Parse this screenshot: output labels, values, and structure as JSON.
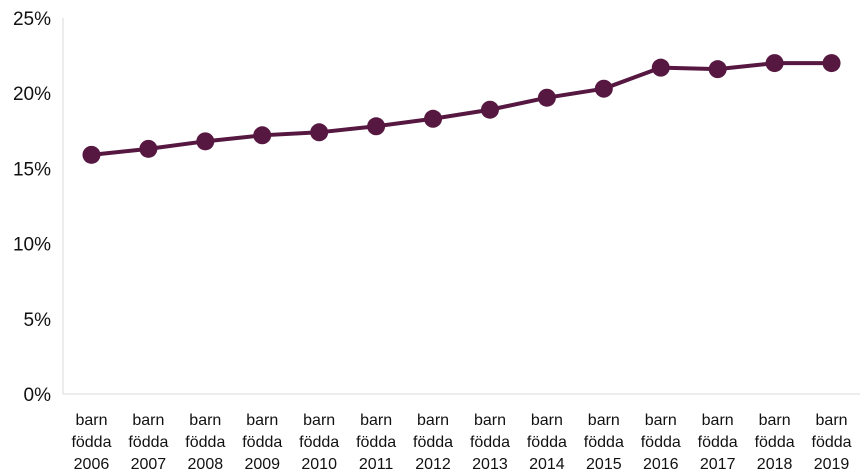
{
  "chart_data": {
    "type": "line",
    "title": "",
    "xlabel": "",
    "ylabel": "",
    "categories": [
      [
        "barn",
        "födda",
        "2006"
      ],
      [
        "barn",
        "födda",
        "2007"
      ],
      [
        "barn",
        "födda",
        "2008"
      ],
      [
        "barn",
        "födda",
        "2009"
      ],
      [
        "barn",
        "födda",
        "2010"
      ],
      [
        "barn",
        "födda",
        "2011"
      ],
      [
        "barn",
        "födda",
        "2012"
      ],
      [
        "barn",
        "födda",
        "2013"
      ],
      [
        "barn",
        "födda",
        "2014"
      ],
      [
        "barn",
        "födda",
        "2015"
      ],
      [
        "barn",
        "födda",
        "2016"
      ],
      [
        "barn",
        "födda",
        "2017"
      ],
      [
        "barn",
        "födda",
        "2018"
      ],
      [
        "barn",
        "födda",
        "2019"
      ]
    ],
    "series": [
      {
        "values": [
          15.9,
          16.3,
          16.8,
          17.2,
          17.4,
          17.8,
          18.3,
          18.9,
          19.7,
          20.3,
          21.7,
          21.6,
          22.0,
          22.0
        ]
      }
    ],
    "ylim": [
      0,
      25
    ],
    "yticks": [
      0,
      5,
      10,
      15,
      20,
      25
    ],
    "ytick_labels": [
      "0%",
      "5%",
      "10%",
      "15%",
      "20%",
      "25%"
    ],
    "grid": false,
    "legend": "none",
    "colors": {
      "line": "#561840",
      "axis": "#d9d9d9",
      "text": "#111111"
    }
  }
}
